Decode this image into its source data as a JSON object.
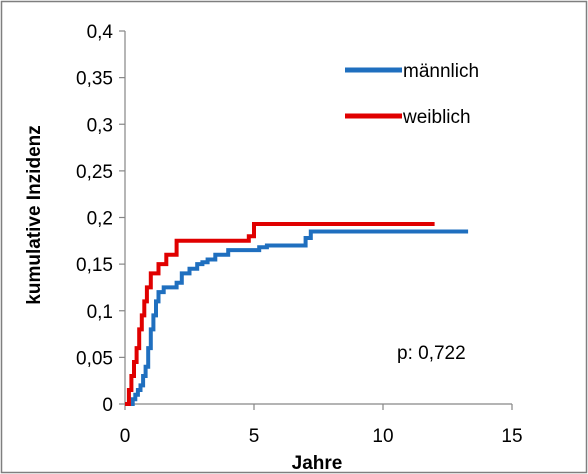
{
  "chart_data": {
    "type": "line",
    "step": true,
    "xlabel": "Jahre",
    "ylabel": "kumulative Inzidenz",
    "xlim": [
      0,
      15
    ],
    "ylim": [
      0,
      0.4
    ],
    "xticks": [
      "0",
      "5",
      "10",
      "15"
    ],
    "yticks": [
      "0",
      "0,05",
      "0,1",
      "0,15",
      "0,2",
      "0,25",
      "0,3",
      "0,35",
      "0,4"
    ],
    "grid": false,
    "legend_position": "top-right",
    "annotation": "p: 0,722",
    "series": [
      {
        "name": "männlich",
        "color": "#1f6fbf",
        "x": [
          0,
          0.2,
          0.3,
          0.4,
          0.5,
          0.6,
          0.7,
          0.8,
          0.9,
          1.0,
          1.1,
          1.2,
          1.3,
          1.5,
          2.0,
          2.2,
          2.5,
          2.8,
          3.0,
          3.2,
          3.5,
          4.0,
          4.8,
          5.2,
          5.5,
          6.0,
          7.0,
          7.2,
          8.0,
          13.3
        ],
        "y": [
          0,
          0,
          0.005,
          0.01,
          0.015,
          0.02,
          0.03,
          0.04,
          0.06,
          0.08,
          0.095,
          0.11,
          0.12,
          0.125,
          0.13,
          0.14,
          0.145,
          0.15,
          0.152,
          0.155,
          0.16,
          0.165,
          0.165,
          0.168,
          0.17,
          0.17,
          0.178,
          0.185,
          0.185,
          0.185
        ]
      },
      {
        "name": "weiblich",
        "color": "#e00000",
        "x": [
          0,
          0.15,
          0.25,
          0.35,
          0.45,
          0.55,
          0.65,
          0.75,
          0.85,
          1.0,
          1.3,
          1.6,
          2.0,
          2.5,
          4.8,
          5.0,
          12.0
        ],
        "y": [
          0,
          0.015,
          0.03,
          0.045,
          0.06,
          0.08,
          0.095,
          0.11,
          0.125,
          0.14,
          0.15,
          0.16,
          0.175,
          0.175,
          0.18,
          0.193,
          0.193
        ]
      }
    ]
  }
}
